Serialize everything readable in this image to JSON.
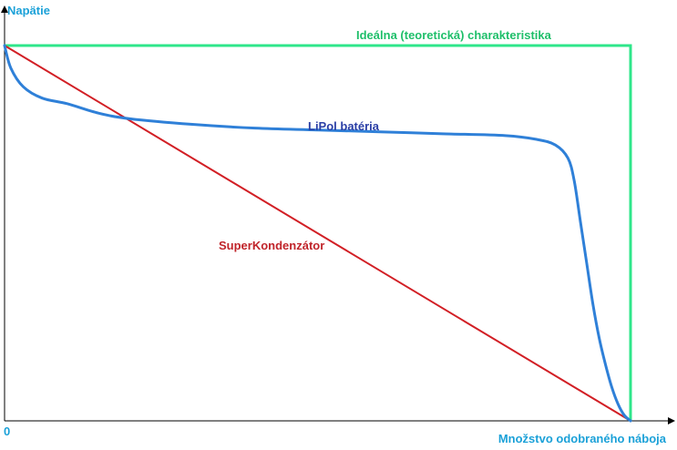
{
  "chart_data": {
    "type": "line",
    "title": "",
    "xlabel": "Množstvo odobraného náboja",
    "ylabel": "Napätie",
    "origin_label": "0",
    "xlim": [
      0,
      100
    ],
    "ylim": [
      0,
      100
    ],
    "grid": false,
    "legend": "none",
    "axis_color": "#000000",
    "axis_label_color": "#1ba1d8",
    "series": [
      {
        "name": "Ideálna (teoretická) charakteristika",
        "color": "#2ee68a",
        "label_color": "#1fbf6a",
        "x": [
          0,
          100,
          100
        ],
        "y": [
          100,
          100,
          0
        ]
      },
      {
        "name": "LiPol batéria",
        "color": "#2f80d8",
        "label_color": "#2b3fa6",
        "x": [
          0,
          1,
          3,
          6,
          10,
          15,
          20,
          30,
          40,
          50,
          60,
          70,
          80,
          85,
          88,
          90,
          91,
          92,
          93,
          94,
          95,
          96,
          97,
          98,
          99,
          100
        ],
        "y": [
          100,
          94,
          89,
          86,
          84.5,
          82,
          80.5,
          79,
          78,
          77.5,
          77,
          76.5,
          76,
          75,
          73.5,
          70,
          64,
          53,
          42,
          31,
          22,
          15,
          9,
          4.5,
          1.5,
          0
        ]
      },
      {
        "name": "SuperKondenzátor",
        "color": "#d21f25",
        "label_color": "#c0242a",
        "x": [
          0,
          100
        ],
        "y": [
          100,
          0
        ]
      }
    ]
  }
}
